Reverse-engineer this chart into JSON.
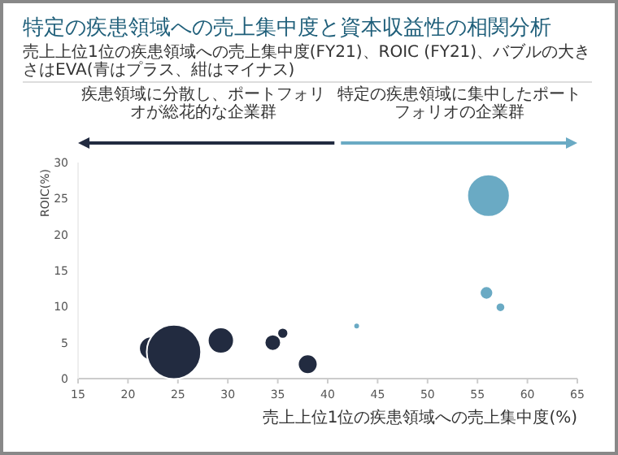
{
  "chart_data": {
    "type": "bubble",
    "title": "特定の疾患領域への売上集中度と資本収益性の相関分析",
    "subtitle": "売上上位1位の疾患領域への売上集中度(FY21)、ROIC (FY21)、バブルの大きさはEVA(青はプラス、紺はマイナス)",
    "annotations": [
      "疾患領域に分散し、ポートフォリオが総花的な企業群",
      "特定の疾患領域に集中したポートフォリオの企業群"
    ],
    "xlabel": "売上上位1位の疾患領域への売上集中度(%)",
    "ylabel": "ROIC(%)",
    "series": [
      {
        "color": "#222b40",
        "x": [
          22.3,
          24.6,
          29.3,
          34.5,
          35.5,
          38.0
        ],
        "values": [
          4.2,
          3.7,
          5.3,
          5.0,
          6.3,
          2.0
        ],
        "sizes": [
          0.19,
          1,
          0.23,
          0.09,
          0.04,
          0.13
        ]
      },
      {
        "color": "#6aaac4",
        "x": [
          56.1,
          55.9,
          57.3,
          42.9
        ],
        "values": [
          25.4,
          11.9,
          9.9,
          7.3
        ],
        "sizes": [
          0.61,
          0.06,
          0.03,
          0.014
        ]
      }
    ],
    "xlim": [
      15,
      65
    ],
    "ylim": [
      0,
      30
    ],
    "xticks": [
      15,
      20,
      25,
      30,
      35,
      40,
      45,
      50,
      55,
      60,
      65
    ],
    "yticks": [
      0,
      5,
      10,
      15,
      20,
      25,
      30
    ],
    "grid": false
  }
}
